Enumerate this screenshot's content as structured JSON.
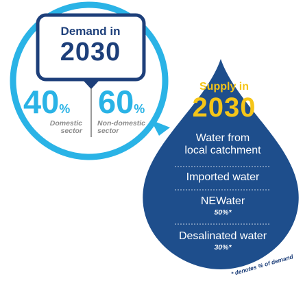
{
  "demand": {
    "title": "Demand in",
    "year": "2030",
    "domestic_pct": "40",
    "domestic_label": [
      "Domestic",
      "sector"
    ],
    "nondomestic_pct": "60",
    "nondomestic_label": [
      "Non-domestic",
      "sector"
    ],
    "percent_sign": "%"
  },
  "supply": {
    "title": "Supply in",
    "year": "2030",
    "items": [
      {
        "label_lines": [
          "Water from",
          "local catchment"
        ]
      },
      {
        "label_lines": [
          "Imported water"
        ]
      },
      {
        "label": "NEWater",
        "pct": "50%*"
      },
      {
        "label": "Desalinated water",
        "pct": "30%*"
      }
    ]
  },
  "footnote": "* denotes % of demand",
  "colors": {
    "light_blue": "#2ab3e6",
    "navy": "#1d3f7a",
    "drop_blue": "#1e4e8c",
    "yellow": "#f5c518",
    "grey": "#8c8c8c"
  }
}
